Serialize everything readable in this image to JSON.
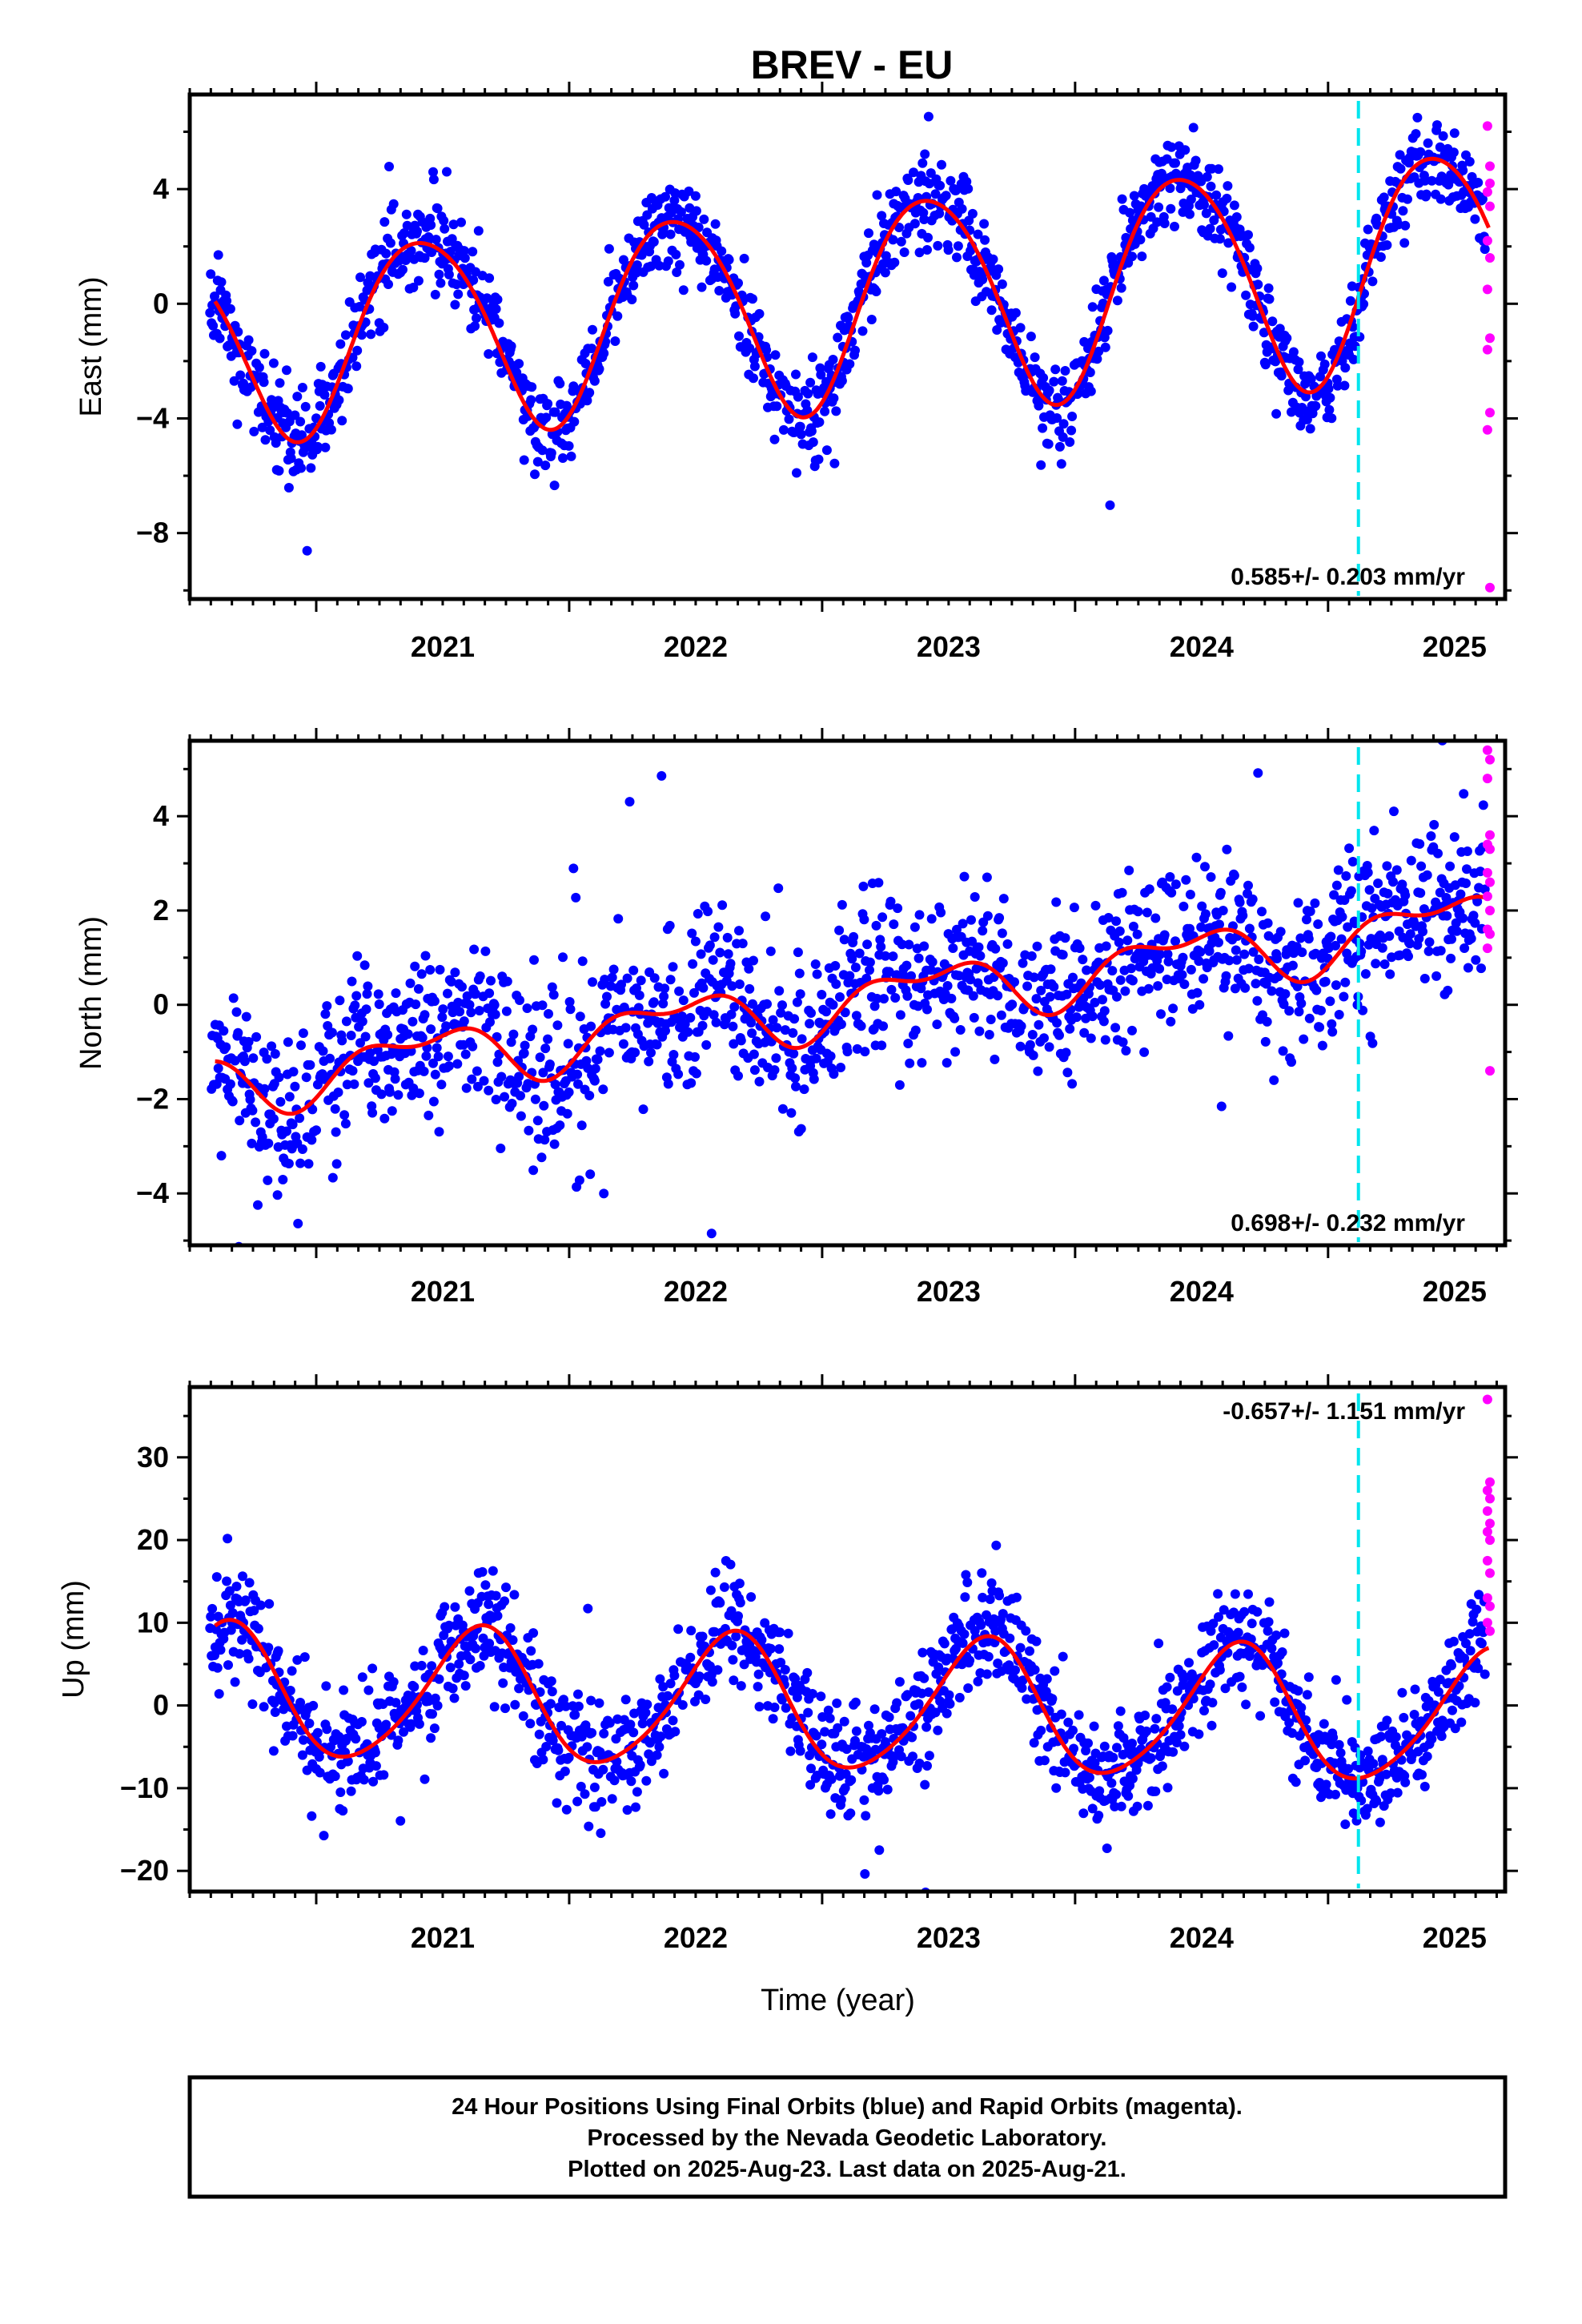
{
  "title": "BREV - EU",
  "footer": {
    "line1": "24 Hour Positions Using Final Orbits (blue) and Rapid Orbits (magenta).",
    "line2": "Processed by the Nevada Geodetic Laboratory.",
    "line3": "Plotted on 2025-Aug-23. Last data on 2025-Aug-21."
  },
  "colors": {
    "final_orbits": "#0000ff",
    "rapid_orbits": "#ff00ff",
    "model_fit": "#ff0000",
    "event_line": "#00e5ee"
  },
  "chart_data": [
    {
      "type": "scatter",
      "panel": "east",
      "ylabel": "East (mm)",
      "xlabel": "",
      "xlim": [
        2020.5,
        2025.7
      ],
      "ylim": [
        -10.3,
        7.3
      ],
      "yticks": [
        -8,
        -4,
        0,
        4
      ],
      "xticks": [
        2021,
        2022,
        2023,
        2024,
        2025
      ],
      "rate_text": "0.585+/- 0.203 mm/yr",
      "rate_label_position": "bottom-right",
      "grid": false,
      "event_lines": [
        2025.12
      ],
      "model": {
        "offset": 0.0,
        "rate": 0.585,
        "t0": 2023.0,
        "annual_amp": 3.6,
        "annual_amp_trend": 0.15,
        "annual_peak": 0.42,
        "semiannual_amp": 0.35,
        "semiannual_peak": 0.2
      },
      "scatter": {
        "seed": 11,
        "step": 0.003,
        "noise": 0.75,
        "outlier_fraction": 0.03,
        "outlier_noise": 2.0
      },
      "rapid_points": {
        "x": [
          2025.63,
          2025.64,
          2025.63,
          2025.64,
          2025.63,
          2025.64,
          2025.63,
          2025.64,
          2025.63,
          2025.64,
          2025.63,
          2025.64,
          2025.64
        ],
        "y": [
          6.2,
          4.8,
          3.9,
          3.4,
          2.2,
          1.6,
          0.5,
          -1.2,
          -1.6,
          -3.8,
          -4.4,
          -9.9,
          4.2
        ]
      }
    },
    {
      "type": "scatter",
      "panel": "north",
      "ylabel": "North (mm)",
      "xlabel": "",
      "xlim": [
        2020.5,
        2025.7
      ],
      "ylim": [
        -5.1,
        5.6
      ],
      "yticks": [
        -4,
        -2,
        0,
        2,
        4
      ],
      "xticks": [
        2021,
        2022,
        2023,
        2024,
        2025
      ],
      "rate_text": "0.698+/- 0.232 mm/yr",
      "rate_label_position": "bottom-right",
      "grid": false,
      "event_lines": [
        2025.12
      ],
      "model": {
        "offset": 0.0,
        "rate": 0.698,
        "t0": 2023.0,
        "annual_amp": 0.55,
        "annual_amp_trend": 0.0,
        "annual_peak": 0.42,
        "semiannual_amp": 0.3,
        "semiannual_peak": 0.15
      },
      "scatter": {
        "seed": 23,
        "step": 0.003,
        "noise": 0.85,
        "outlier_fraction": 0.03,
        "outlier_noise": 2.0
      },
      "rapid_points": {
        "x": [
          2025.63,
          2025.64,
          2025.63,
          2025.64,
          2025.63,
          2025.64,
          2025.63,
          2025.64,
          2025.63,
          2025.64,
          2025.63,
          2025.64,
          2025.63,
          2025.64
        ],
        "y": [
          5.4,
          5.2,
          4.8,
          3.6,
          3.4,
          2.6,
          2.3,
          2.0,
          1.6,
          1.5,
          1.2,
          -1.4,
          2.8,
          3.3
        ]
      }
    },
    {
      "type": "scatter",
      "panel": "up",
      "ylabel": "Up (mm)",
      "xlabel": "Time (year)",
      "xlim": [
        2020.5,
        2025.7
      ],
      "ylim": [
        -22.5,
        38.5
      ],
      "yticks": [
        -20,
        -10,
        0,
        10,
        20,
        30
      ],
      "xticks": [
        2021,
        2022,
        2023,
        2024,
        2025
      ],
      "rate_text": "-0.657+/- 1.151 mm/yr",
      "rate_label_position": "top-right",
      "grid": false,
      "event_lines": [
        2025.12
      ],
      "model": {
        "offset": 0.0,
        "rate": -0.657,
        "t0": 2023.0,
        "annual_amp": 8.0,
        "annual_amp_trend": 0.0,
        "annual_peak": 0.64,
        "semiannual_amp": 1.0,
        "semiannual_peak": 0.2
      },
      "scatter": {
        "seed": 37,
        "step": 0.003,
        "noise": 3.4,
        "outlier_fraction": 0.03,
        "outlier_noise": 7.0
      },
      "rapid_points": {
        "x": [
          2025.63,
          2025.64,
          2025.63,
          2025.64,
          2025.63,
          2025.64,
          2025.63,
          2025.64,
          2025.63,
          2025.64,
          2025.63,
          2025.64,
          2025.63,
          2025.64
        ],
        "y": [
          37.0,
          27.0,
          26.0,
          25.0,
          23.5,
          22.0,
          21.0,
          20.0,
          17.5,
          16.0,
          13.0,
          12.0,
          10.0,
          9.0
        ]
      }
    }
  ]
}
